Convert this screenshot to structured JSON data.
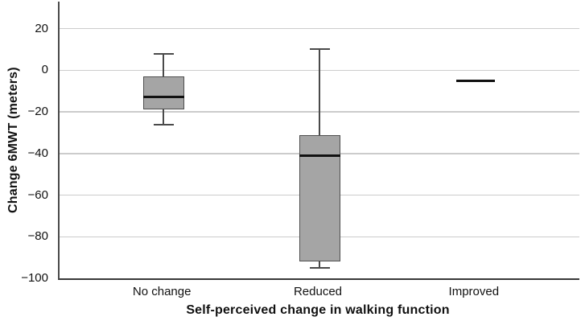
{
  "chart_data": {
    "type": "boxplot",
    "title": "",
    "xlabel": "Self-perceived change in walking function",
    "ylabel": "Change 6MWT (meters)",
    "categories": [
      "No change",
      "Reduced",
      "Improved"
    ],
    "ylim": [
      -100,
      33
    ],
    "yticks": [
      20,
      0,
      -20,
      -40,
      -60,
      -80,
      -100
    ],
    "ytick_labels": [
      "20",
      "0",
      "−20",
      "−40",
      "−60",
      "−80",
      "−100"
    ],
    "grid": true,
    "legend": "none",
    "series": [
      {
        "category": "No change",
        "min": -26,
        "q1": -19,
        "median": -13,
        "q3": -3,
        "max": 8,
        "degenerate": false
      },
      {
        "category": "Reduced",
        "min": -95,
        "q1": -92,
        "median": -41,
        "q3": -31,
        "max": 10,
        "degenerate": false
      },
      {
        "category": "Improved",
        "min": -5,
        "q1": -5,
        "median": -5,
        "q3": -5,
        "max": -5,
        "degenerate": true
      }
    ],
    "colors": {
      "box_fill": "#a5a5a5",
      "box_border": "#4f4f4f",
      "median": "#111111",
      "whisker": "#4a4a4a",
      "gridline": "#cccccc",
      "axis": "#4a4a4a",
      "text": "#111111",
      "background": "#ffffff"
    }
  }
}
